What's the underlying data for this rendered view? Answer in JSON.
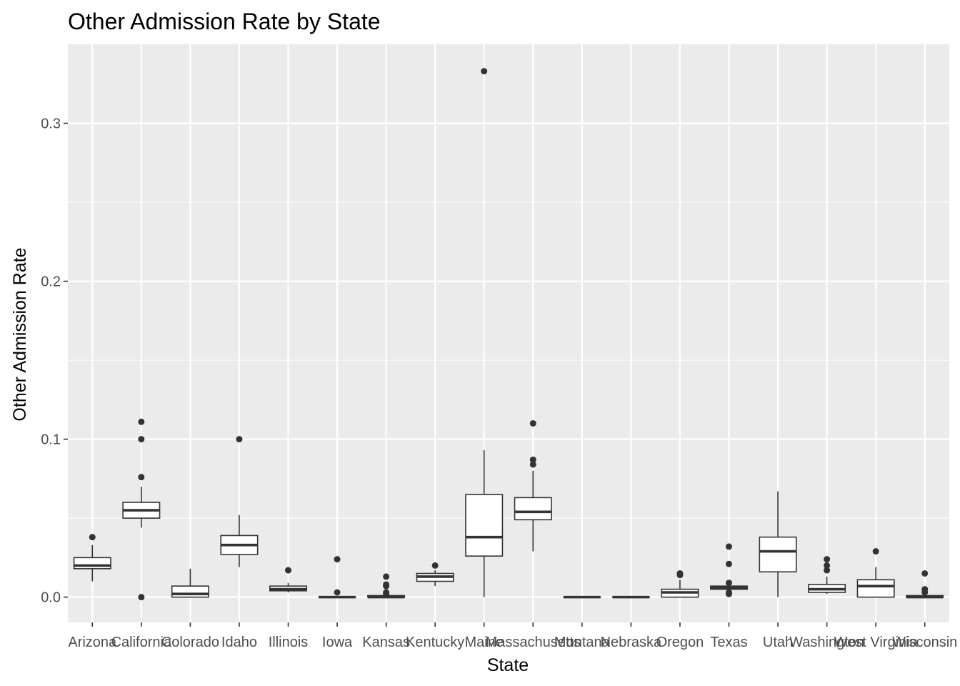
{
  "chart_data": {
    "type": "boxplot",
    "title": "Other Admission Rate by State",
    "xlabel": "State",
    "ylabel": "Other Admission Rate",
    "ylim": [
      -0.016,
      0.35
    ],
    "yticks": [
      0.0,
      0.1,
      0.2,
      0.3
    ],
    "ytick_labels": [
      "0.0",
      "0.1",
      "0.2",
      "0.3"
    ],
    "grid": true,
    "legend": "none",
    "categories": [
      "Arizona",
      "California",
      "Colorado",
      "Idaho",
      "Illinois",
      "Iowa",
      "Kansas",
      "Kentucky",
      "Maine",
      "Massachusetts",
      "Montana",
      "Nebraska",
      "Oregon",
      "Texas",
      "Utah",
      "Washington",
      "West Virginia",
      "Wisconsin"
    ],
    "boxes": [
      {
        "state": "Arizona",
        "min": 0.01,
        "q1": 0.018,
        "median": 0.02,
        "q3": 0.025,
        "max": 0.033,
        "outliers": [
          0.038
        ]
      },
      {
        "state": "California",
        "min": 0.044,
        "q1": 0.05,
        "median": 0.055,
        "q3": 0.06,
        "max": 0.07,
        "outliers": [
          0.111,
          0.1,
          0.076,
          0.0
        ]
      },
      {
        "state": "Colorado",
        "min": 0.0,
        "q1": 0.0,
        "median": 0.002,
        "q3": 0.007,
        "max": 0.018,
        "outliers": []
      },
      {
        "state": "Idaho",
        "min": 0.019,
        "q1": 0.027,
        "median": 0.033,
        "q3": 0.039,
        "max": 0.052,
        "outliers": [
          0.1
        ]
      },
      {
        "state": "Illinois",
        "min": 0.003,
        "q1": 0.004,
        "median": 0.005,
        "q3": 0.007,
        "max": 0.009,
        "outliers": [
          0.017
        ]
      },
      {
        "state": "Iowa",
        "min": 0.0,
        "q1": 0.0,
        "median": 0.0,
        "q3": 0.0,
        "max": 0.0,
        "outliers": [
          0.024,
          0.003
        ]
      },
      {
        "state": "Kansas",
        "min": 0.0,
        "q1": 0.0,
        "median": 0.0,
        "q3": 0.001,
        "max": 0.001,
        "outliers": [
          0.013,
          0.008,
          0.007,
          0.003,
          0.002
        ]
      },
      {
        "state": "Kentucky",
        "min": 0.007,
        "q1": 0.01,
        "median": 0.013,
        "q3": 0.015,
        "max": 0.017,
        "outliers": [
          0.02
        ]
      },
      {
        "state": "Maine",
        "min": 0.0,
        "q1": 0.026,
        "median": 0.038,
        "q3": 0.065,
        "max": 0.093,
        "outliers": [
          0.333
        ]
      },
      {
        "state": "Massachusetts",
        "min": 0.029,
        "q1": 0.049,
        "median": 0.054,
        "q3": 0.063,
        "max": 0.08,
        "outliers": [
          0.11,
          0.087,
          0.084
        ]
      },
      {
        "state": "Montana",
        "min": 0.0,
        "q1": 0.0,
        "median": 0.0,
        "q3": 0.0,
        "max": 0.0,
        "outliers": []
      },
      {
        "state": "Nebraska",
        "min": 0.0,
        "q1": 0.0,
        "median": 0.0,
        "q3": 0.0,
        "max": 0.0,
        "outliers": []
      },
      {
        "state": "Oregon",
        "min": 0.0,
        "q1": 0.0,
        "median": 0.003,
        "q3": 0.005,
        "max": 0.011,
        "outliers": [
          0.015,
          0.014
        ]
      },
      {
        "state": "Texas",
        "min": 0.005,
        "q1": 0.005,
        "median": 0.006,
        "q3": 0.007,
        "max": 0.008,
        "outliers": [
          0.032,
          0.021,
          0.009,
          0.003,
          0.002
        ]
      },
      {
        "state": "Utah",
        "min": 0.0,
        "q1": 0.016,
        "median": 0.029,
        "q3": 0.038,
        "max": 0.067,
        "outliers": []
      },
      {
        "state": "Washington",
        "min": 0.002,
        "q1": 0.003,
        "median": 0.005,
        "q3": 0.008,
        "max": 0.013,
        "outliers": [
          0.024,
          0.02,
          0.017
        ]
      },
      {
        "state": "West Virginia",
        "min": 0.0,
        "q1": 0.0,
        "median": 0.007,
        "q3": 0.011,
        "max": 0.019,
        "outliers": [
          0.029
        ]
      },
      {
        "state": "Wisconsin",
        "min": 0.0,
        "q1": 0.0,
        "median": 0.0,
        "q3": 0.001,
        "max": 0.002,
        "outliers": [
          0.015,
          0.005,
          0.003
        ]
      }
    ],
    "colors": {
      "panel": "#ebebeb",
      "grid_major": "#ffffff",
      "box_fill": "#ffffff",
      "box_line": "#333333",
      "outlier": "#333333",
      "tick_label": "#4d4d4d",
      "axis_tick": "#333333"
    }
  }
}
